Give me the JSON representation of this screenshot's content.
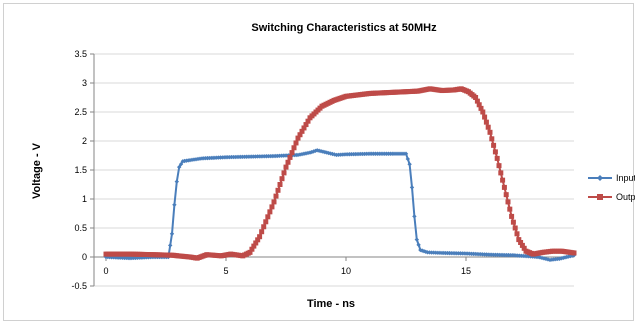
{
  "chart_data": {
    "type": "line",
    "title": "Switching Characteristics at 50MHz",
    "xlabel": "Time  -  ns",
    "ylabel": "Voltage - V",
    "xlim": [
      -0.5,
      19.5
    ],
    "ylim": [
      -0.5,
      3.5
    ],
    "x_ticks": [
      0,
      5,
      10,
      15
    ],
    "x_tick_labels": [
      "0",
      "5",
      "10",
      "15"
    ],
    "y_ticks": [
      -0.5,
      0,
      0.5,
      1,
      1.5,
      2,
      2.5,
      3,
      3.5
    ],
    "y_tick_labels": [
      "-0.5",
      "0",
      "0.5",
      "1",
      "1.5",
      "2",
      "2.5",
      "3",
      "3.5"
    ],
    "grid": "horizontal",
    "legend_position": "right",
    "series": [
      {
        "name": "Input",
        "color": "#4a7ebb",
        "marker": "diamond",
        "points": [
          [
            0,
            0.0
          ],
          [
            1,
            -0.02
          ],
          [
            2,
            0.0
          ],
          [
            2.6,
            0.0
          ],
          [
            2.75,
            0.4
          ],
          [
            2.85,
            0.9
          ],
          [
            2.95,
            1.3
          ],
          [
            3.05,
            1.55
          ],
          [
            3.2,
            1.65
          ],
          [
            3.5,
            1.67
          ],
          [
            4,
            1.7
          ],
          [
            5,
            1.72
          ],
          [
            6,
            1.73
          ],
          [
            7,
            1.74
          ],
          [
            8,
            1.76
          ],
          [
            8.5,
            1.8
          ],
          [
            8.8,
            1.84
          ],
          [
            9.2,
            1.8
          ],
          [
            9.6,
            1.76
          ],
          [
            10,
            1.77
          ],
          [
            11,
            1.78
          ],
          [
            12,
            1.78
          ],
          [
            12.5,
            1.78
          ],
          [
            12.65,
            1.6
          ],
          [
            12.75,
            1.2
          ],
          [
            12.85,
            0.7
          ],
          [
            12.95,
            0.3
          ],
          [
            13.1,
            0.12
          ],
          [
            13.4,
            0.08
          ],
          [
            14,
            0.07
          ],
          [
            15,
            0.06
          ],
          [
            16,
            0.04
          ],
          [
            17,
            0.03
          ],
          [
            18,
            0.0
          ],
          [
            18.5,
            -0.05
          ],
          [
            18.9,
            -0.03
          ],
          [
            19.5,
            0.03
          ]
        ]
      },
      {
        "name": "Output",
        "color": "#be4b48",
        "marker": "square",
        "points": [
          [
            0,
            0.05
          ],
          [
            1,
            0.05
          ],
          [
            2,
            0.04
          ],
          [
            2.8,
            0.03
          ],
          [
            3,
            0.02
          ],
          [
            3.5,
            0.0
          ],
          [
            3.8,
            -0.02
          ],
          [
            4.2,
            0.04
          ],
          [
            4.8,
            0.02
          ],
          [
            5.2,
            0.05
          ],
          [
            5.7,
            0.02
          ],
          [
            6.0,
            0.08
          ],
          [
            6.4,
            0.35
          ],
          [
            7.0,
            0.95
          ],
          [
            7.5,
            1.55
          ],
          [
            8.0,
            2.05
          ],
          [
            8.5,
            2.4
          ],
          [
            9.0,
            2.6
          ],
          [
            9.5,
            2.7
          ],
          [
            10,
            2.77
          ],
          [
            11,
            2.82
          ],
          [
            12,
            2.84
          ],
          [
            13,
            2.86
          ],
          [
            13.5,
            2.9
          ],
          [
            14,
            2.87
          ],
          [
            14.5,
            2.88
          ],
          [
            14.8,
            2.9
          ],
          [
            15.1,
            2.85
          ],
          [
            15.4,
            2.75
          ],
          [
            15.7,
            2.5
          ],
          [
            16.0,
            2.15
          ],
          [
            16.3,
            1.7
          ],
          [
            16.6,
            1.2
          ],
          [
            16.9,
            0.7
          ],
          [
            17.2,
            0.3
          ],
          [
            17.5,
            0.1
          ],
          [
            17.8,
            0.05
          ],
          [
            18.2,
            0.08
          ],
          [
            18.6,
            0.1
          ],
          [
            19,
            0.1
          ],
          [
            19.5,
            0.07
          ]
        ]
      }
    ]
  }
}
